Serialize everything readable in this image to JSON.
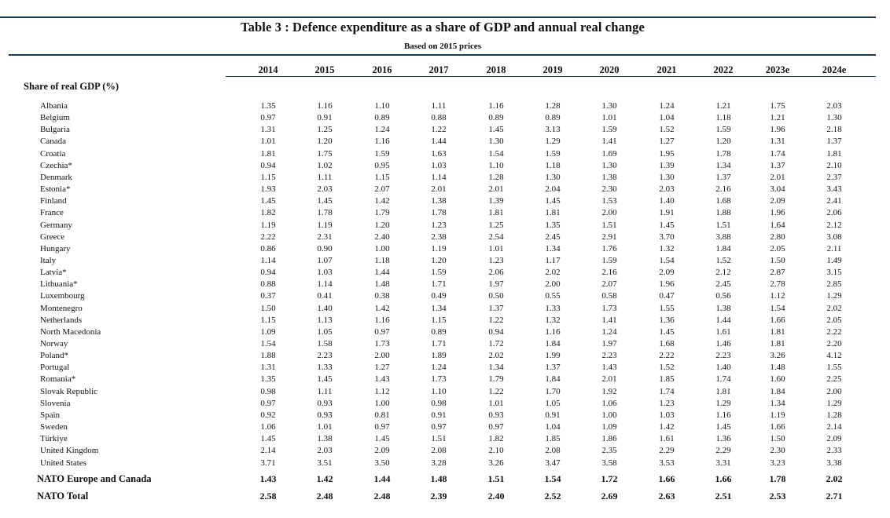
{
  "title": "Table 3 : Defence expenditure as a share of GDP and annual real change",
  "subtitle": "Based on 2015 prices",
  "columns": [
    "2014",
    "2015",
    "2016",
    "2017",
    "2018",
    "2019",
    "2020",
    "2021",
    "2022",
    "2023e",
    "2024e"
  ],
  "section_label": "Share of real GDP (%)",
  "rows": [
    {
      "name": "Albania",
      "values": [
        "1.35",
        "1.16",
        "1.10",
        "1.11",
        "1.16",
        "1.28",
        "1.30",
        "1.24",
        "1.21",
        "1.75",
        "2.03"
      ]
    },
    {
      "name": "Belgium",
      "values": [
        "0.97",
        "0.91",
        "0.89",
        "0.88",
        "0.89",
        "0.89",
        "1.01",
        "1.04",
        "1.18",
        "1.21",
        "1.30"
      ]
    },
    {
      "name": "Bulgaria",
      "values": [
        "1.31",
        "1.25",
        "1.24",
        "1.22",
        "1.45",
        "3.13",
        "1.59",
        "1.52",
        "1.59",
        "1.96",
        "2.18"
      ]
    },
    {
      "name": "Canada",
      "values": [
        "1.01",
        "1.20",
        "1.16",
        "1.44",
        "1.30",
        "1.29",
        "1.41",
        "1.27",
        "1.20",
        "1.31",
        "1.37"
      ]
    },
    {
      "name": "Croatia",
      "values": [
        "1.81",
        "1.75",
        "1.59",
        "1.63",
        "1.54",
        "1.59",
        "1.69",
        "1.95",
        "1.78",
        "1.74",
        "1.81"
      ]
    },
    {
      "name": "Czechia*",
      "values": [
        "0.94",
        "1.02",
        "0.95",
        "1.03",
        "1.10",
        "1.18",
        "1.30",
        "1.39",
        "1.34",
        "1.37",
        "2.10"
      ]
    },
    {
      "name": "Denmark",
      "values": [
        "1.15",
        "1.11",
        "1.15",
        "1.14",
        "1.28",
        "1.30",
        "1.38",
        "1.30",
        "1.37",
        "2.01",
        "2.37"
      ]
    },
    {
      "name": "Estonia*",
      "values": [
        "1.93",
        "2.03",
        "2.07",
        "2.01",
        "2.01",
        "2.04",
        "2.30",
        "2.03",
        "2.16",
        "3.04",
        "3.43"
      ]
    },
    {
      "name": "Finland",
      "values": [
        "1.45",
        "1.45",
        "1.42",
        "1.38",
        "1.39",
        "1.45",
        "1.53",
        "1.40",
        "1.68",
        "2.09",
        "2.41"
      ]
    },
    {
      "name": "France",
      "values": [
        "1.82",
        "1.78",
        "1.79",
        "1.78",
        "1.81",
        "1.81",
        "2.00",
        "1.91",
        "1.88",
        "1.96",
        "2.06"
      ]
    },
    {
      "name": "Germany",
      "values": [
        "1.19",
        "1.19",
        "1.20",
        "1.23",
        "1.25",
        "1.35",
        "1.51",
        "1.45",
        "1.51",
        "1.64",
        "2.12"
      ]
    },
    {
      "name": "Greece",
      "values": [
        "2.22",
        "2.31",
        "2.40",
        "2.38",
        "2.54",
        "2.45",
        "2.91",
        "3.70",
        "3.88",
        "2.80",
        "3.08"
      ]
    },
    {
      "name": "Hungary",
      "values": [
        "0.86",
        "0.90",
        "1.00",
        "1.19",
        "1.01",
        "1.34",
        "1.76",
        "1.32",
        "1.84",
        "2.05",
        "2.11"
      ]
    },
    {
      "name": "Italy",
      "values": [
        "1.14",
        "1.07",
        "1.18",
        "1.20",
        "1.23",
        "1.17",
        "1.59",
        "1.54",
        "1.52",
        "1.50",
        "1.49"
      ]
    },
    {
      "name": "Latvia*",
      "values": [
        "0.94",
        "1.03",
        "1.44",
        "1.59",
        "2.06",
        "2.02",
        "2.16",
        "2.09",
        "2.12",
        "2.87",
        "3.15"
      ]
    },
    {
      "name": "Lithuania*",
      "values": [
        "0.88",
        "1.14",
        "1.48",
        "1.71",
        "1.97",
        "2.00",
        "2.07",
        "1.96",
        "2.45",
        "2.78",
        "2.85"
      ]
    },
    {
      "name": "Luxembourg",
      "values": [
        "0.37",
        "0.41",
        "0.38",
        "0.49",
        "0.50",
        "0.55",
        "0.58",
        "0.47",
        "0.56",
        "1.12",
        "1.29"
      ]
    },
    {
      "name": "Montenegro",
      "values": [
        "1.50",
        "1.40",
        "1.42",
        "1.34",
        "1.37",
        "1.33",
        "1.73",
        "1.55",
        "1.38",
        "1.54",
        "2.02"
      ]
    },
    {
      "name": "Netherlands",
      "values": [
        "1.15",
        "1.13",
        "1.16",
        "1.15",
        "1.22",
        "1.32",
        "1.41",
        "1.36",
        "1.44",
        "1.66",
        "2.05"
      ]
    },
    {
      "name": "North Macedonia",
      "values": [
        "1.09",
        "1.05",
        "0.97",
        "0.89",
        "0.94",
        "1.16",
        "1.24",
        "1.45",
        "1.61",
        "1.81",
        "2.22"
      ]
    },
    {
      "name": "Norway",
      "values": [
        "1.54",
        "1.58",
        "1.73",
        "1.71",
        "1.72",
        "1.84",
        "1.97",
        "1.68",
        "1.46",
        "1.81",
        "2.20"
      ]
    },
    {
      "name": "Poland*",
      "values": [
        "1.88",
        "2.23",
        "2.00",
        "1.89",
        "2.02",
        "1.99",
        "2.23",
        "2.22",
        "2.23",
        "3.26",
        "4.12"
      ]
    },
    {
      "name": "Portugal",
      "values": [
        "1.31",
        "1.33",
        "1.27",
        "1.24",
        "1.34",
        "1.37",
        "1.43",
        "1.52",
        "1.40",
        "1.48",
        "1.55"
      ]
    },
    {
      "name": "Romania*",
      "values": [
        "1.35",
        "1.45",
        "1.43",
        "1.73",
        "1.79",
        "1.84",
        "2.01",
        "1.85",
        "1.74",
        "1.60",
        "2.25"
      ]
    },
    {
      "name": "Slovak Republic",
      "values": [
        "0.98",
        "1.11",
        "1.12",
        "1.10",
        "1.22",
        "1.70",
        "1.92",
        "1.74",
        "1.81",
        "1.84",
        "2.00"
      ]
    },
    {
      "name": "Slovenia",
      "values": [
        "0.97",
        "0.93",
        "1.00",
        "0.98",
        "1.01",
        "1.05",
        "1.06",
        "1.23",
        "1.29",
        "1.34",
        "1.29"
      ]
    },
    {
      "name": "Spain",
      "values": [
        "0.92",
        "0.93",
        "0.81",
        "0.91",
        "0.93",
        "0.91",
        "1.00",
        "1.03",
        "1.16",
        "1.19",
        "1.28"
      ]
    },
    {
      "name": "Sweden",
      "values": [
        "1.06",
        "1.01",
        "0.97",
        "0.97",
        "0.97",
        "1.04",
        "1.09",
        "1.42",
        "1.45",
        "1.66",
        "2.14"
      ]
    },
    {
      "name": "Türkiye",
      "values": [
        "1.45",
        "1.38",
        "1.45",
        "1.51",
        "1.82",
        "1.85",
        "1.86",
        "1.61",
        "1.36",
        "1.50",
        "2.09"
      ]
    },
    {
      "name": "United Kingdom",
      "values": [
        "2.14",
        "2.03",
        "2.09",
        "2.08",
        "2.10",
        "2.08",
        "2.35",
        "2.29",
        "2.29",
        "2.30",
        "2.33"
      ]
    },
    {
      "name": "United States",
      "values": [
        "3.71",
        "3.51",
        "3.50",
        "3.28",
        "3.26",
        "3.47",
        "3.58",
        "3.53",
        "3.31",
        "3.23",
        "3.38"
      ]
    }
  ],
  "aggregates": [
    {
      "name": "NATO Europe and Canada",
      "values": [
        "1.43",
        "1.42",
        "1.44",
        "1.48",
        "1.51",
        "1.54",
        "1.72",
        "1.66",
        "1.66",
        "1.78",
        "2.02"
      ]
    },
    {
      "name": "NATO Total",
      "values": [
        "2.58",
        "2.48",
        "2.48",
        "2.39",
        "2.40",
        "2.52",
        "2.69",
        "2.63",
        "2.51",
        "2.53",
        "2.71"
      ]
    }
  ]
}
